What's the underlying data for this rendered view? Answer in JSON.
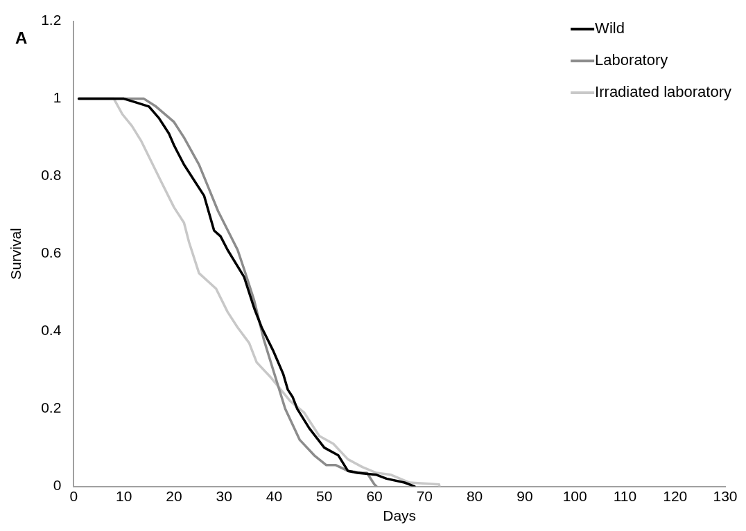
{
  "chart_data": {
    "type": "line",
    "xlabel": "Days",
    "ylabel": "Survival",
    "annotations": [
      "A"
    ],
    "xlim": [
      0,
      130
    ],
    "xticks": [
      0,
      10,
      20,
      30,
      40,
      50,
      60,
      70,
      80,
      90,
      100,
      110,
      120,
      130
    ],
    "ylim": [
      0,
      1.2
    ],
    "yticks": [
      0,
      0.2,
      0.4,
      0.6,
      0.8,
      1,
      1.2
    ],
    "grid": false,
    "legend": "top right",
    "marker": "none",
    "line_style": "solid",
    "series": [
      {
        "name": "Wild",
        "color": "#000000",
        "x": [
          1,
          10,
          12.5,
          15,
          17,
          18,
          19,
          20,
          22,
          24,
          26,
          28,
          29.3,
          30.7,
          34,
          36,
          37.5,
          39.8,
          41.8,
          42.7,
          43.7,
          44.6,
          47,
          50,
          52.8,
          54.7,
          56.6,
          60.4,
          62.4,
          66,
          68
        ],
        "values": [
          1,
          1,
          0.99,
          0.98,
          0.95,
          0.93,
          0.91,
          0.88,
          0.83,
          0.79,
          0.75,
          0.66,
          0.645,
          0.61,
          0.54,
          0.46,
          0.41,
          0.35,
          0.29,
          0.25,
          0.23,
          0.2,
          0.15,
          0.1,
          0.08,
          0.04,
          0.035,
          0.03,
          0.02,
          0.01,
          0
        ]
      },
      {
        "name": "Laboratory",
        "color": "#8c8c8c",
        "x": [
          1,
          14,
          16.4,
          20,
          22,
          25,
          26.9,
          28.8,
          32.7,
          34,
          36,
          37.9,
          39.8,
          42.2,
          45.1,
          48,
          50.4,
          52.3,
          54.7,
          57.6,
          58.5,
          60,
          60.4
        ],
        "values": [
          1,
          1,
          0.98,
          0.94,
          0.9,
          0.83,
          0.77,
          0.71,
          0.61,
          0.56,
          0.48,
          0.38,
          0.3,
          0.2,
          0.12,
          0.08,
          0.055,
          0.055,
          0.04,
          0.035,
          0.035,
          0.005,
          0
        ]
      },
      {
        "name": "Irradiated laboratory",
        "color": "#c8c8c8",
        "x": [
          1,
          8,
          9.7,
          11.6,
          13.5,
          15.4,
          17.3,
          20,
          22,
          23,
          25,
          28.4,
          30.7,
          32.7,
          35,
          36.5,
          39.4,
          43.2,
          46,
          49,
          51.8,
          54.7,
          57.6,
          60.4,
          63.3,
          67,
          72.9,
          73
        ],
        "values": [
          1,
          1,
          0.96,
          0.93,
          0.89,
          0.84,
          0.79,
          0.72,
          0.68,
          0.63,
          0.55,
          0.51,
          0.45,
          0.41,
          0.37,
          0.32,
          0.28,
          0.22,
          0.19,
          0.13,
          0.11,
          0.07,
          0.05,
          0.035,
          0.03,
          0.01,
          0.005,
          0
        ]
      }
    ]
  }
}
